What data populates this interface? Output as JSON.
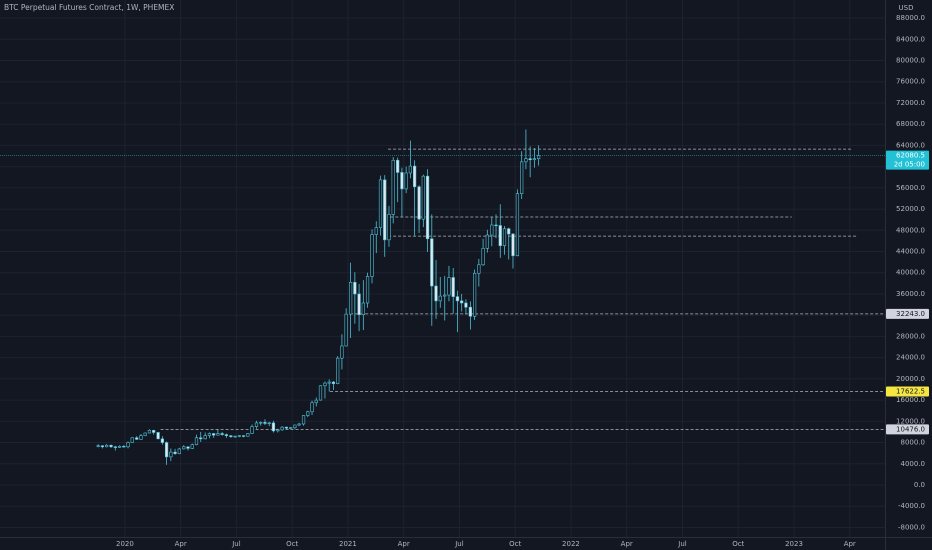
{
  "chart_data": {
    "type": "candlestick",
    "title": "BTC Perpetual Futures Contract, 1W, PHEMEX",
    "currency": "USD",
    "up_color": "#4fc3d9",
    "down_color": "#e0e6ea",
    "grid": true,
    "xlim": [
      2019.44,
      2023.408
    ],
    "ylim": [
      -9800,
      91400
    ],
    "xticks": [
      2020,
      {
        "value": 2020.25,
        "label": "Apr"
      },
      {
        "value": 2020.5,
        "label": "Jul"
      },
      {
        "value": 2020.75,
        "label": "Oct"
      },
      2021,
      {
        "value": 2021.25,
        "label": "Apr"
      },
      {
        "value": 2021.5,
        "label": "Jul"
      },
      {
        "value": 2021.75,
        "label": "Oct"
      },
      2022,
      {
        "value": 2022.25,
        "label": "Apr"
      },
      {
        "value": 2022.5,
        "label": "Jul"
      },
      {
        "value": 2022.75,
        "label": "Oct"
      },
      2023,
      {
        "value": 2023.25,
        "label": "Apr"
      }
    ],
    "yticks": [
      {
        "value": -8000,
        "label": "-8000.0"
      },
      {
        "value": -4000,
        "label": "-4000.0"
      },
      {
        "value": 0,
        "label": "0.0"
      },
      {
        "value": 4000,
        "label": "4000.0"
      },
      {
        "value": 8000,
        "label": "8000.0"
      },
      {
        "value": 12000,
        "label": "12000.0"
      },
      {
        "value": 16000,
        "label": "16000.0"
      },
      {
        "value": 20000,
        "label": "20000.0"
      },
      {
        "value": 24000,
        "label": "24000.0"
      },
      {
        "value": 28000,
        "label": "28000.0"
      },
      {
        "value": 32000,
        "label": "32000.0"
      },
      {
        "value": 36000,
        "label": "36000.0"
      },
      {
        "value": 40000,
        "label": "40000.0"
      },
      {
        "value": 44000,
        "label": "44000.0"
      },
      {
        "value": 48000,
        "label": "48000.0"
      },
      {
        "value": 52000,
        "label": "52000.0"
      },
      {
        "value": 56000,
        "label": "56000.0"
      },
      {
        "value": 60000,
        "label": "60000.0"
      },
      {
        "value": 64000,
        "label": "64000.0"
      },
      {
        "value": 68000,
        "label": "68000.0"
      },
      {
        "value": 72000,
        "label": "72000.0"
      },
      {
        "value": 76000,
        "label": "76000.0"
      },
      {
        "value": 80000,
        "label": "80000.0"
      },
      {
        "value": 84000,
        "label": "84000.0"
      },
      {
        "value": 88000,
        "label": "88000.0"
      }
    ],
    "x": [
      2019.88,
      2019.899,
      2019.918,
      2019.938,
      2019.957,
      2019.976,
      2019.995,
      2020.014,
      2020.033,
      2020.053,
      2020.072,
      2020.091,
      2020.11,
      2020.129,
      2020.149,
      2020.168,
      2020.187,
      2020.206,
      2020.225,
      2020.244,
      2020.264,
      2020.283,
      2020.302,
      2020.321,
      2020.34,
      2020.36,
      2020.379,
      2020.398,
      2020.417,
      2020.436,
      2020.455,
      2020.475,
      2020.494,
      2020.513,
      2020.532,
      2020.551,
      2020.57,
      2020.59,
      2020.609,
      2020.628,
      2020.647,
      2020.666,
      2020.686,
      2020.705,
      2020.724,
      2020.743,
      2020.762,
      2020.781,
      2020.801,
      2020.82,
      2020.839,
      2020.858,
      2020.877,
      2020.897,
      2020.916,
      2020.935,
      2020.954,
      2020.973,
      2020.992,
      2021.012,
      2021.031,
      2021.05,
      2021.069,
      2021.088,
      2021.108,
      2021.127,
      2021.146,
      2021.165,
      2021.184,
      2021.203,
      2021.223,
      2021.242,
      2021.261,
      2021.28,
      2021.299,
      2021.319,
      2021.338,
      2021.357,
      2021.376,
      2021.395,
      2021.414,
      2021.434,
      2021.453,
      2021.472,
      2021.491,
      2021.51,
      2021.529,
      2021.549,
      2021.568,
      2021.587,
      2021.606,
      2021.625,
      2021.645,
      2021.664,
      2021.683,
      2021.702,
      2021.721,
      2021.74,
      2021.76,
      2021.779,
      2021.798,
      2021.817,
      2021.836,
      2021.855
    ],
    "open": [
      7300,
      7400,
      7200,
      7500,
      7200,
      7100,
      7300,
      7200,
      8000,
      8900,
      8600,
      9300,
      9800,
      10300,
      9900,
      8700,
      8000,
      5300,
      6200,
      5900,
      6800,
      7200,
      6900,
      7600,
      8900,
      8700,
      9300,
      9700,
      9400,
      9700,
      9500,
      9300,
      9100,
      9200,
      9300,
      9200,
      9700,
      11000,
      11700,
      11800,
      11600,
      11700,
      10200,
      10400,
      10900,
      10700,
      10800,
      11300,
      11500,
      13100,
      13800,
      15500,
      16000,
      18700,
      19200,
      19400,
      19100,
      23900,
      26200,
      32200,
      38200,
      36000,
      32100,
      34300,
      39300,
      47200,
      48500,
      57500,
      46200,
      51000,
      61200,
      58900,
      55800,
      58800,
      60100,
      56200,
      50100,
      58200,
      46400,
      37500,
      34700,
      35600,
      35800,
      39100,
      35500,
      34700,
      34300,
      33500,
      31800,
      39900,
      41500,
      44600,
      47100,
      49000,
      48900,
      45100,
      48300,
      47300,
      43200,
      54900,
      60900,
      61500,
      61300,
      61500
    ],
    "high": [
      7700,
      7500,
      7700,
      7600,
      7400,
      7500,
      7500,
      8200,
      9000,
      9200,
      9600,
      9900,
      10500,
      10400,
      10000,
      9200,
      8200,
      6900,
      6800,
      7000,
      7500,
      7300,
      7800,
      9500,
      10000,
      9900,
      9900,
      9800,
      10400,
      10000,
      9700,
      9400,
      9300,
      9400,
      9400,
      9800,
      11400,
      12100,
      12000,
      12400,
      11900,
      12100,
      10600,
      11100,
      11000,
      10900,
      11400,
      11700,
      13200,
      14000,
      15900,
      16500,
      18800,
      19500,
      19900,
      19600,
      24300,
      28400,
      33300,
      41900,
      40100,
      37900,
      38600,
      40000,
      48200,
      49700,
      58300,
      58400,
      52600,
      61800,
      61700,
      59800,
      60000,
      64900,
      61200,
      56500,
      58500,
      59500,
      51000,
      42400,
      39200,
      39400,
      41300,
      40900,
      36600,
      36000,
      35000,
      34600,
      40600,
      42600,
      46400,
      48100,
      50500,
      51000,
      52900,
      48800,
      48500,
      47500,
      55700,
      62900,
      67000,
      63800,
      63500,
      64000
    ],
    "low": [
      7100,
      6900,
      7100,
      7000,
      6500,
      7000,
      7100,
      6900,
      7900,
      8500,
      8500,
      9200,
      9700,
      9500,
      8600,
      7600,
      3800,
      4500,
      5700,
      5800,
      6700,
      6500,
      6800,
      7500,
      8100,
      8600,
      8800,
      8900,
      9300,
      9300,
      8900,
      8900,
      8900,
      9000,
      9000,
      9100,
      9600,
      10600,
      11200,
      11300,
      11100,
      9900,
      9900,
      10200,
      10400,
      10500,
      10500,
      11100,
      11200,
      12800,
      13200,
      14800,
      15900,
      16300,
      17600,
      17900,
      19000,
      21800,
      26100,
      27700,
      30400,
      29000,
      29200,
      33400,
      38000,
      43700,
      47000,
      43000,
      44900,
      49300,
      53300,
      50400,
      55000,
      57800,
      47000,
      47500,
      48600,
      43900,
      30000,
      31300,
      33400,
      31000,
      34600,
      32300,
      28800,
      32700,
      32100,
      29300,
      31100,
      37400,
      41300,
      43800,
      45000,
      46500,
      42800,
      43400,
      42500,
      40800,
      43100,
      53900,
      59500,
      58000,
      59800,
      60200
    ],
    "close": [
      7400,
      7200,
      7500,
      7200,
      7100,
      7300,
      7200,
      8000,
      8900,
      8600,
      9300,
      9800,
      10300,
      9900,
      8700,
      8000,
      5300,
      6200,
      5900,
      6800,
      7200,
      6900,
      7600,
      8900,
      8700,
      9300,
      9700,
      9400,
      9700,
      9500,
      9300,
      9100,
      9200,
      9300,
      9200,
      9700,
      11000,
      11700,
      11800,
      11600,
      11700,
      10200,
      10400,
      10900,
      10700,
      10800,
      11300,
      11500,
      13100,
      13800,
      15500,
      16000,
      18700,
      19200,
      19400,
      19100,
      23900,
      26200,
      32200,
      38200,
      36000,
      32100,
      34300,
      39300,
      47200,
      48500,
      57500,
      46200,
      51000,
      61200,
      58900,
      55800,
      58800,
      60100,
      56200,
      50100,
      58200,
      46400,
      37500,
      34700,
      35600,
      35800,
      39100,
      35500,
      34700,
      34300,
      33500,
      31800,
      39900,
      41500,
      44600,
      47100,
      49000,
      48900,
      45100,
      48300,
      47300,
      43200,
      54900,
      60900,
      61500,
      61300,
      61500,
      62080.5
    ],
    "levels": [
      {
        "value": 63300,
        "x0": 2021.18,
        "x1": 2023.26
      },
      {
        "value": 50500,
        "x0": 2021.19,
        "x1": 2022.99
      },
      {
        "value": 46900,
        "x0": 2021.18,
        "x1": 2023.28
      },
      {
        "value": 32243,
        "label": "32243.0",
        "label_color": "#d1d4dc",
        "x0": 2021.01,
        "x1": 2023.408
      },
      {
        "value": 17622.5,
        "label": "17622.5",
        "label_color": "#f5e642",
        "x0": 2020.92,
        "x1": 2023.408
      },
      {
        "value": 10476,
        "label": "10476.0",
        "label_color": "#d1d4dc",
        "x0": 2020.16,
        "x1": 2023.408
      }
    ],
    "last_price": 62080.5,
    "last_price_color": "#22c1d6",
    "countdown": "2d 05:00"
  }
}
